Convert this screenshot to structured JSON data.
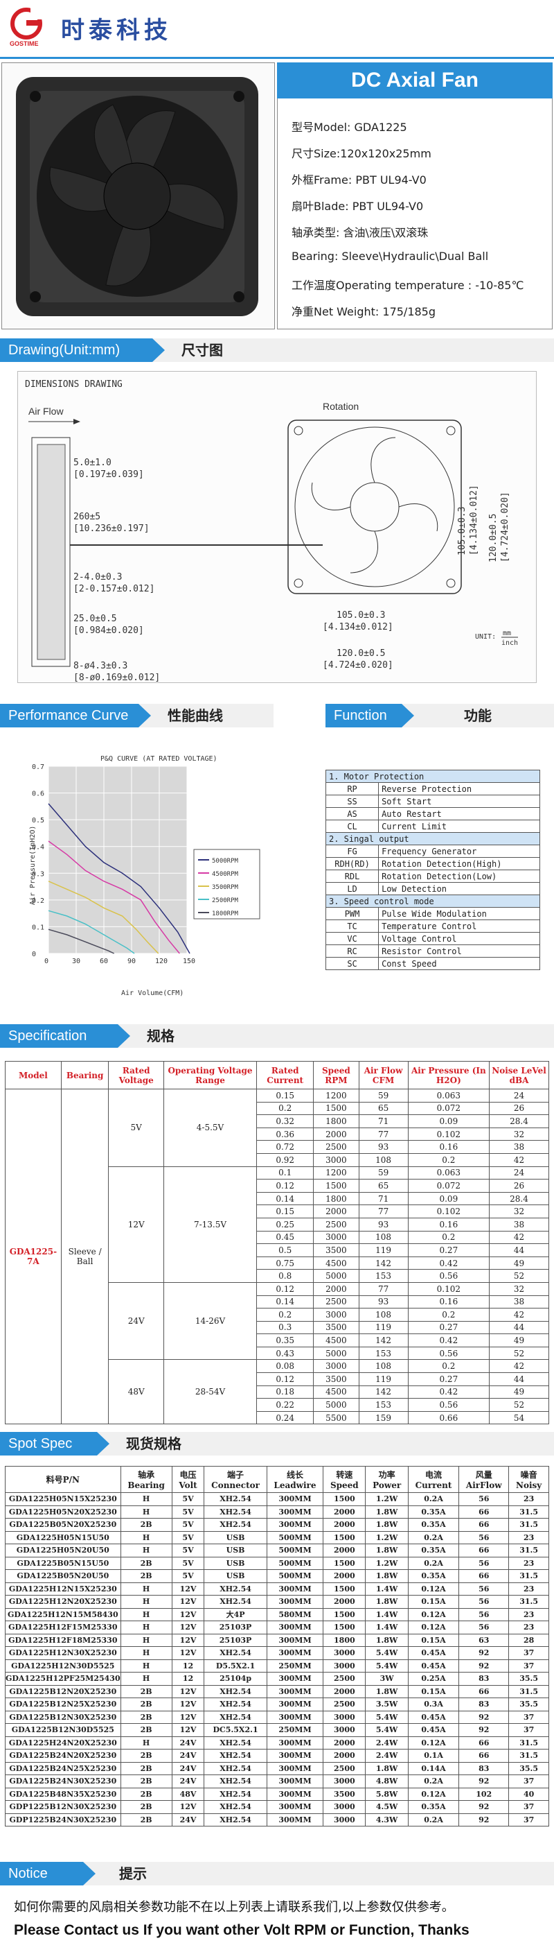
{
  "brand": {
    "cn": "时泰科技",
    "en": "GOSTIME"
  },
  "product": {
    "title": "DC Axial Fan",
    "lines": [
      "型号Model: GDA1225",
      "尺寸Size:120x120x25mm",
      "外框Frame: PBT UL94-V0",
      "扇叶Blade: PBT UL94-V0",
      "轴承类型: 含油\\液压\\双滚珠",
      "Bearing: Sleeve\\Hydraulic\\Dual Ball",
      "工作温度Operating temperature : -10-85℃",
      "净重Net Weight: 175/185g"
    ]
  },
  "sections": {
    "drawing_en": "Drawing(Unit:mm)",
    "drawing_cn": "尺寸图",
    "perf_en": "Performance Curve",
    "perf_cn": "性能曲线",
    "func_en": "Function",
    "func_cn": "功能",
    "spec_en": "Specification",
    "spec_cn": "规格",
    "spot_en": "Spot Spec",
    "spot_cn": "现货规格",
    "notice_en": "Notice",
    "notice_cn": "提示"
  },
  "drawing": {
    "title": "DIMENSIONS DRAWING",
    "airflow": "Air Flow",
    "rotation": "Rotation",
    "d1": "5.0±1.0",
    "d1b": "[0.197±0.039]",
    "d2": "260±5",
    "d2b": "[10.236±0.197]",
    "d3": "2-4.0±0.3",
    "d3b": "[2-0.157±0.012]",
    "d4": "25.0±0.5",
    "d4b": "[0.984±0.020]",
    "d5": "8-ø4.3±0.3",
    "d5b": "[8-ø0.169±0.012]",
    "d6": "105.0±0.3",
    "d6b": "[4.134±0.012]",
    "d7": "120.0±0.5",
    "d7b": "[4.724±0.020]",
    "v1": "105.0±0.3",
    "v1b": "[4.134±0.012]",
    "v2": "120.0±0.5",
    "v2b": "[4.724±0.020]",
    "unit": "UNIT:",
    "unit_top": "mm",
    "unit_bot": "inch"
  },
  "chart_data": {
    "type": "line",
    "title": "P&Q CURVE (AT RATED VOLTAGE)",
    "xlabel": "Air Volume(CFM)",
    "ylabel": "Air Pressure(InH2O)",
    "xlim": [
      0,
      150
    ],
    "ylim": [
      0,
      0.7
    ],
    "xticks": [
      "0",
      "30",
      "60",
      "90",
      "120",
      "150"
    ],
    "yticks": [
      "0",
      "0.1",
      "0.2",
      "0.3",
      "0.4",
      "0.5",
      "0.6",
      "0.7"
    ],
    "series": [
      {
        "name": "5000RPM",
        "color": "#2b2f7a",
        "points": [
          [
            0,
            0.56
          ],
          [
            20,
            0.48
          ],
          [
            40,
            0.4
          ],
          [
            60,
            0.34
          ],
          [
            80,
            0.3
          ],
          [
            100,
            0.25
          ],
          [
            120,
            0.17
          ],
          [
            140,
            0.08
          ],
          [
            153,
            0
          ]
        ]
      },
      {
        "name": "4500RPM",
        "color": "#d63aa5",
        "points": [
          [
            0,
            0.42
          ],
          [
            20,
            0.37
          ],
          [
            40,
            0.31
          ],
          [
            60,
            0.27
          ],
          [
            80,
            0.24
          ],
          [
            100,
            0.2
          ],
          [
            115,
            0.12
          ],
          [
            130,
            0.05
          ],
          [
            142,
            0
          ]
        ]
      },
      {
        "name": "3500RPM",
        "color": "#d9c24a",
        "points": [
          [
            0,
            0.27
          ],
          [
            20,
            0.24
          ],
          [
            40,
            0.21
          ],
          [
            60,
            0.17
          ],
          [
            80,
            0.14
          ],
          [
            95,
            0.09
          ],
          [
            108,
            0.04
          ],
          [
            119,
            0
          ]
        ]
      },
      {
        "name": "2500RPM",
        "color": "#48c0c7",
        "points": [
          [
            0,
            0.16
          ],
          [
            20,
            0.14
          ],
          [
            40,
            0.11
          ],
          [
            55,
            0.08
          ],
          [
            70,
            0.05
          ],
          [
            85,
            0.02
          ],
          [
            93,
            0
          ]
        ]
      },
      {
        "name": "1800RPM",
        "color": "#4a4a5a",
        "points": [
          [
            0,
            0.09
          ],
          [
            20,
            0.07
          ],
          [
            35,
            0.05
          ],
          [
            50,
            0.03
          ],
          [
            65,
            0.01
          ],
          [
            71,
            0
          ]
        ]
      }
    ]
  },
  "func": [
    [
      "1. Motor Protection",
      ""
    ],
    [
      "RP",
      "Reverse Protection"
    ],
    [
      "SS",
      "Soft Start"
    ],
    [
      "AS",
      "Auto Restart"
    ],
    [
      "CL",
      "Current Limit"
    ],
    [
      "2. Singal output",
      ""
    ],
    [
      "FG",
      "Frequency Generator"
    ],
    [
      "RDH(RD)",
      "Rotation Detection(High)"
    ],
    [
      "RDL",
      "Rotation Detection(Low)"
    ],
    [
      "LD",
      "Low Detection"
    ],
    [
      "3. Speed control mode",
      ""
    ],
    [
      "PWM",
      "Pulse Wide Modulation"
    ],
    [
      "TC",
      "Temperature Control"
    ],
    [
      "VC",
      "Voltage Control"
    ],
    [
      "RC",
      "Resistor Control"
    ],
    [
      "SC",
      "Const Speed"
    ]
  ],
  "spec": {
    "headers": [
      "Model",
      "Bearing",
      "Rated Voltage",
      "Operating Voltage Range",
      "Rated Current",
      "Speed RPM",
      "Air Flow CFM",
      "Air Pressure (In H2O)",
      "Noise LeVel dBA"
    ],
    "model": "GDA1225-7A",
    "bearing": "Sleeve / Ball",
    "groups": [
      {
        "rv": "5V",
        "ov": "4-5.5V",
        "rows": [
          [
            "0.15",
            "1200",
            "59",
            "0.063",
            "24"
          ],
          [
            "0.2",
            "1500",
            "65",
            "0.072",
            "26"
          ],
          [
            "0.32",
            "1800",
            "71",
            "0.09",
            "28.4"
          ],
          [
            "0.36",
            "2000",
            "77",
            "0.102",
            "32"
          ],
          [
            "0.72",
            "2500",
            "93",
            "0.16",
            "38"
          ],
          [
            "0.92",
            "3000",
            "108",
            "0.2",
            "42"
          ]
        ]
      },
      {
        "rv": "12V",
        "ov": "7-13.5V",
        "rows": [
          [
            "0.1",
            "1200",
            "59",
            "0.063",
            "24"
          ],
          [
            "0.12",
            "1500",
            "65",
            "0.072",
            "26"
          ],
          [
            "0.14",
            "1800",
            "71",
            "0.09",
            "28.4"
          ],
          [
            "0.15",
            "2000",
            "77",
            "0.102",
            "32"
          ],
          [
            "0.25",
            "2500",
            "93",
            "0.16",
            "38"
          ],
          [
            "0.45",
            "3000",
            "108",
            "0.2",
            "42"
          ],
          [
            "0.5",
            "3500",
            "119",
            "0.27",
            "44"
          ],
          [
            "0.75",
            "4500",
            "142",
            "0.42",
            "49"
          ],
          [
            "0.8",
            "5000",
            "153",
            "0.56",
            "52"
          ]
        ]
      },
      {
        "rv": "24V",
        "ov": "14-26V",
        "rows": [
          [
            "0.12",
            "2000",
            "77",
            "0.102",
            "32"
          ],
          [
            "0.14",
            "2500",
            "93",
            "0.16",
            "38"
          ],
          [
            "0.2",
            "3000",
            "108",
            "0.2",
            "42"
          ],
          [
            "0.3",
            "3500",
            "119",
            "0.27",
            "44"
          ],
          [
            "0.35",
            "4500",
            "142",
            "0.42",
            "49"
          ],
          [
            "0.43",
            "5000",
            "153",
            "0.56",
            "52"
          ]
        ]
      },
      {
        "rv": "48V",
        "ov": "28-54V",
        "rows": [
          [
            "0.08",
            "3000",
            "108",
            "0.2",
            "42"
          ],
          [
            "0.12",
            "3500",
            "119",
            "0.27",
            "44"
          ],
          [
            "0.18",
            "4500",
            "142",
            "0.42",
            "49"
          ],
          [
            "0.22",
            "5000",
            "153",
            "0.56",
            "52"
          ],
          [
            "0.24",
            "5500",
            "159",
            "0.66",
            "54"
          ]
        ]
      }
    ]
  },
  "spot": {
    "headers": [
      "料号P/N",
      "轴承 Bearing",
      "电压 Volt",
      "端子 Connector",
      "线长 Leadwire",
      "转速 Speed",
      "功率 Power",
      "电流 Current",
      "风量 AirFlow",
      "噪音 Noisy"
    ],
    "rows": [
      [
        "GDA1225H05N15X25230",
        "H",
        "5V",
        "XH2.54",
        "300MM",
        "1500",
        "1.2W",
        "0.2A",
        "56",
        "23"
      ],
      [
        "GDA1225H05N20X25230",
        "H",
        "5V",
        "XH2.54",
        "300MM",
        "2000",
        "1.8W",
        "0.35A",
        "66",
        "31.5"
      ],
      [
        "GDA1225B05N20X25230",
        "2B",
        "5V",
        "XH2.54",
        "300MM",
        "2000",
        "1.8W",
        "0.35A",
        "66",
        "31.5"
      ],
      [
        "GDA1225H05N15U50",
        "H",
        "5V",
        "USB",
        "500MM",
        "1500",
        "1.2W",
        "0.2A",
        "56",
        "23"
      ],
      [
        "GDA1225H05N20U50",
        "H",
        "5V",
        "USB",
        "500MM",
        "2000",
        "1.8W",
        "0.35A",
        "66",
        "31.5"
      ],
      [
        "GDA1225B05N15U50",
        "2B",
        "5V",
        "USB",
        "500MM",
        "1500",
        "1.2W",
        "0.2A",
        "56",
        "23"
      ],
      [
        "GDA1225B05N20U50",
        "2B",
        "5V",
        "USB",
        "500MM",
        "2000",
        "1.8W",
        "0.35A",
        "66",
        "31.5"
      ],
      [
        "GDA1225H12N15X25230",
        "H",
        "12V",
        "XH2.54",
        "300MM",
        "1500",
        "1.4W",
        "0.12A",
        "56",
        "23"
      ],
      [
        "GDA1225H12N20X25230",
        "H",
        "12V",
        "XH2.54",
        "300MM",
        "2000",
        "1.8W",
        "0.15A",
        "56",
        "31.5"
      ],
      [
        "GDA1225H12N15M58430",
        "H",
        "12V",
        "大4P",
        "580MM",
        "1500",
        "1.4W",
        "0.12A",
        "56",
        "23"
      ],
      [
        "GDA1225H12F15M25330",
        "H",
        "12V",
        "25103P",
        "300MM",
        "1500",
        "1.4W",
        "0.12A",
        "56",
        "23"
      ],
      [
        "GDA1225H12F18M25330",
        "H",
        "12V",
        "25103P",
        "300MM",
        "1800",
        "1.8W",
        "0.15A",
        "63",
        "28"
      ],
      [
        "GDA1225H12N30X25230",
        "H",
        "12V",
        "XH2.54",
        "300MM",
        "3000",
        "5.4W",
        "0.45A",
        "92",
        "37"
      ],
      [
        "GDA1225H12N30D5525",
        "H",
        "12",
        "D5.5X2.1",
        "250MM",
        "3000",
        "5.4W",
        "0.45A",
        "92",
        "37"
      ],
      [
        "GDA1225H12PF25M25430",
        "H",
        "12",
        "25104p",
        "300MM",
        "2500",
        "3W",
        "0.25A",
        "83",
        "35.5"
      ],
      [
        "GDA1225B12N20X25230",
        "2B",
        "12V",
        "XH2.54",
        "300MM",
        "2000",
        "1.8W",
        "0.15A",
        "66",
        "31.5"
      ],
      [
        "GDA1225B12N25X25230",
        "2B",
        "12V",
        "XH2.54",
        "300MM",
        "2500",
        "3.5W",
        "0.3A",
        "83",
        "35.5"
      ],
      [
        "GDA1225B12N30X25230",
        "2B",
        "12V",
        "XH2.54",
        "300MM",
        "3000",
        "5.4W",
        "0.45A",
        "92",
        "37"
      ],
      [
        "GDA1225B12N30D5525",
        "2B",
        "12V",
        "DC5.5X2.1",
        "250MM",
        "3000",
        "5.4W",
        "0.45A",
        "92",
        "37"
      ],
      [
        "GDA1225H24N20X25230",
        "H",
        "24V",
        "XH2.54",
        "300MM",
        "2000",
        "2.4W",
        "0.12A",
        "66",
        "31.5"
      ],
      [
        "GDA1225B24N20X25230",
        "2B",
        "24V",
        "XH2.54",
        "300MM",
        "2000",
        "2.4W",
        "0.1A",
        "66",
        "31.5"
      ],
      [
        "GDA1225B24N25X25230",
        "2B",
        "24V",
        "XH2.54",
        "300MM",
        "2500",
        "1.8W",
        "0.14A",
        "83",
        "35.5"
      ],
      [
        "GDA1225B24N30X25230",
        "2B",
        "24V",
        "XH2.54",
        "300MM",
        "3000",
        "4.8W",
        "0.2A",
        "92",
        "37"
      ],
      [
        "GDA1225B48N35X25230",
        "2B",
        "48V",
        "XH2.54",
        "300MM",
        "3500",
        "5.8W",
        "0.12A",
        "102",
        "40"
      ],
      [
        "GDP1225B12N30X25230",
        "2B",
        "12V",
        "XH2.54",
        "300MM",
        "3000",
        "4.5W",
        "0.35A",
        "92",
        "37"
      ],
      [
        "GDP1225B24N30X25230",
        "2B",
        "24V",
        "XH2.54",
        "300MM",
        "3000",
        "4.3W",
        "0.2A",
        "92",
        "37"
      ]
    ]
  },
  "notice": {
    "cn": "如何你需要的风扇相关参数功能不在以上列表上请联系我们,以上参数仅供参考。",
    "en": "Please Contact us If you want other Volt RPM or Function, Thanks"
  },
  "colors": {
    "accent": "#2a8fd6",
    "brand": "#2a4ea0",
    "red": "#d32027"
  }
}
